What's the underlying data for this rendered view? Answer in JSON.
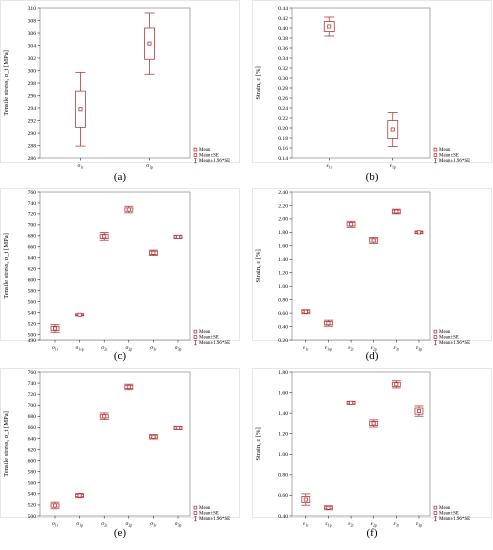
{
  "legend": [
    "Mean",
    "Mean±SE",
    "Mean±1.96*SE"
  ],
  "colors": {
    "box": "#b43c3c",
    "frame": "#888888"
  },
  "chart_data": [
    {
      "type": "box",
      "panel_label": "(a)",
      "ylabel": "Tensile stress, σ_t [MPa]",
      "categories": [
        "σ1r",
        "σ1p"
      ],
      "category_labels": [
        [
          "σ",
          "1r"
        ],
        [
          "σ",
          "1p"
        ]
      ],
      "ylim": [
        286,
        310
      ],
      "yticks": [
        286,
        288,
        290,
        292,
        294,
        296,
        298,
        300,
        302,
        304,
        306,
        308,
        310
      ],
      "mean": [
        293.8,
        304.3
      ],
      "se": [
        2.9,
        2.5
      ],
      "ci95": [
        5.9,
        4.9
      ],
      "legend_position": "bottom-right"
    },
    {
      "type": "box",
      "panel_label": "(b)",
      "ylabel": "Strain, ε [%]",
      "categories": [
        "ε1r",
        "ε1p"
      ],
      "category_labels": [
        [
          "ε",
          "1r"
        ],
        [
          "ε",
          "1p"
        ]
      ],
      "ylim": [
        0.14,
        0.44
      ],
      "yticks": [
        0.14,
        0.16,
        0.18,
        0.2,
        0.22,
        0.24,
        0.26,
        0.28,
        0.3,
        0.32,
        0.34,
        0.36,
        0.38,
        0.4,
        0.42,
        0.44
      ],
      "mean": [
        0.403,
        0.197
      ],
      "se": [
        0.01,
        0.018
      ],
      "ci95": [
        0.019,
        0.034
      ],
      "legend_position": "bottom-right"
    },
    {
      "type": "box",
      "panel_label": "(c)",
      "ylabel": "Tensile stress, σ_t [MPa]",
      "categories": [
        "σ1r",
        "σ1rp",
        "σ2r",
        "σ2p",
        "σ3r",
        "σ3p"
      ],
      "category_labels": [
        [
          "σ",
          "1r"
        ],
        [
          "σ",
          "1rp"
        ],
        [
          "σ",
          "2r"
        ],
        [
          "σ",
          "2p"
        ],
        [
          "σ",
          "3r"
        ],
        [
          "σ",
          "3p"
        ]
      ],
      "ylim": [
        490,
        760
      ],
      "yticks": [
        490,
        500,
        520,
        540,
        560,
        580,
        600,
        620,
        640,
        660,
        680,
        700,
        720,
        740,
        760
      ],
      "mean": [
        511,
        536,
        679,
        728,
        649,
        678
      ],
      "se": [
        4,
        1,
        4,
        3,
        3,
        2
      ],
      "ci95": [
        7,
        2,
        7,
        6,
        5,
        3
      ],
      "legend_position": "bottom-right"
    },
    {
      "type": "box",
      "panel_label": "(d)",
      "ylabel": "Strain, ε [%]",
      "categories": [
        "ε1r",
        "ε1rp",
        "ε2r",
        "ε2p",
        "ε3r",
        "ε3p"
      ],
      "category_labels": [
        [
          "ε",
          "1r"
        ],
        [
          "ε",
          "1rp"
        ],
        [
          "ε",
          "2r"
        ],
        [
          "ε",
          "2p"
        ],
        [
          "ε",
          "3r"
        ],
        [
          "ε",
          "3p"
        ]
      ],
      "ylim": [
        0.2,
        2.4
      ],
      "yticks": [
        0.2,
        0.4,
        0.6,
        0.8,
        1.0,
        1.2,
        1.4,
        1.6,
        1.8,
        2.0,
        2.2,
        2.4
      ],
      "mean": [
        0.62,
        0.45,
        1.92,
        1.68,
        2.11,
        1.8
      ],
      "se": [
        0.015,
        0.025,
        0.025,
        0.025,
        0.02,
        0.01
      ],
      "ci95": [
        0.03,
        0.045,
        0.045,
        0.045,
        0.035,
        0.02
      ],
      "legend_position": "bottom-right"
    },
    {
      "type": "box",
      "panel_label": "(e)",
      "ylabel": "Tensile stress, σ_t [MPa]",
      "categories": [
        "σ1r",
        "σ1p",
        "σ2r",
        "σ2p",
        "σ3r",
        "σ3p"
      ],
      "category_labels": [
        [
          "σ",
          "1r"
        ],
        [
          "σ",
          "1p"
        ],
        [
          "σ",
          "2r"
        ],
        [
          "σ",
          "2p"
        ],
        [
          "σ",
          "3r"
        ],
        [
          "σ",
          "3p"
        ]
      ],
      "ylim": [
        500,
        760
      ],
      "yticks": [
        500,
        520,
        540,
        560,
        580,
        600,
        620,
        640,
        660,
        680,
        700,
        720,
        740,
        760
      ],
      "mean": [
        519,
        537,
        680,
        733,
        643,
        659
      ],
      "se": [
        3,
        2,
        3,
        3,
        2,
        2
      ],
      "ci95": [
        6,
        4,
        6,
        5,
        4,
        3
      ],
      "legend_position": "bottom-right"
    },
    {
      "type": "box",
      "panel_label": "(f)",
      "ylabel": "Strain, ε [%]",
      "categories": [
        "ε1r",
        "ε1p",
        "ε2r",
        "ε2p",
        "ε3r",
        "ε3p"
      ],
      "category_labels": [
        [
          "ε",
          "1r"
        ],
        [
          "ε",
          "1p"
        ],
        [
          "ε",
          "2r"
        ],
        [
          "ε",
          "2p"
        ],
        [
          "ε",
          "3r"
        ],
        [
          "ε",
          "3p"
        ]
      ],
      "ylim": [
        0.4,
        1.8
      ],
      "yticks": [
        0.4,
        0.6,
        0.8,
        1.0,
        1.2,
        1.4,
        1.6,
        1.8
      ],
      "mean": [
        0.56,
        0.48,
        1.5,
        1.3,
        1.68,
        1.42
      ],
      "se": [
        0.03,
        0.01,
        0.01,
        0.02,
        0.02,
        0.03
      ],
      "ci95": [
        0.055,
        0.02,
        0.015,
        0.035,
        0.035,
        0.05
      ],
      "legend_position": "bottom-right"
    }
  ]
}
